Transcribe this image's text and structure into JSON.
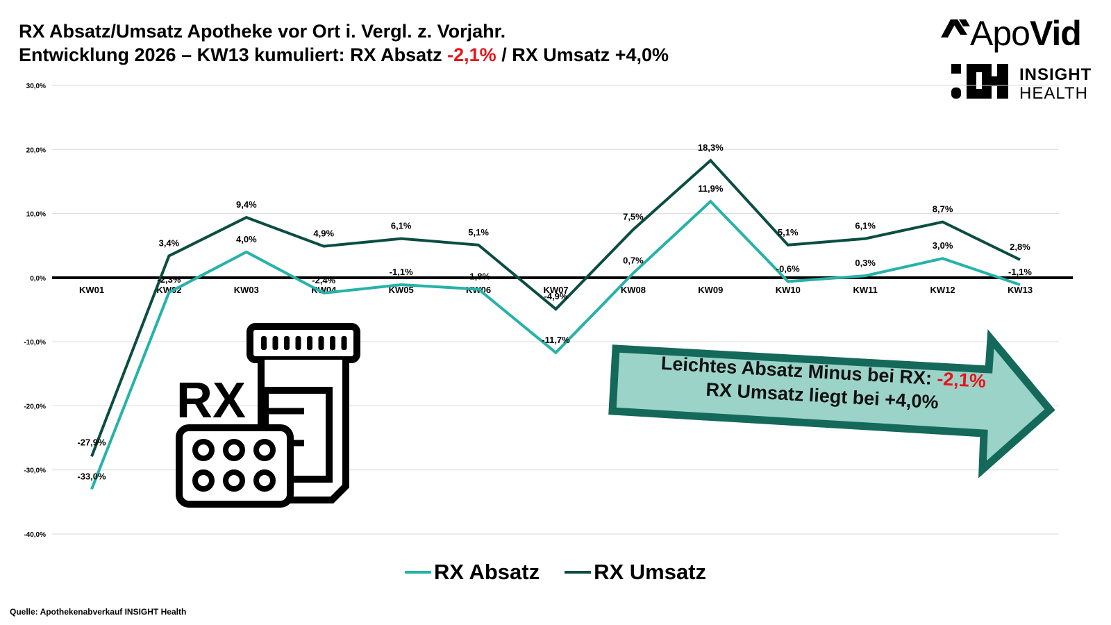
{
  "title": {
    "line1": "RX Absatz/Umsatz Apotheke vor Ort i. Vergl. z. Vorjahr.",
    "line2_prefix": "Entwicklung 2026 – KW13 kumuliert: RX Absatz ",
    "line2_absatz": "-2,1%",
    "line2_suffix": " / RX Umsatz +4,0%"
  },
  "logos": {
    "apovid_light": "Apo",
    "apovid_bold": "Vid",
    "insight_bold": "INSIGHT",
    "insight_light": "HEALTH"
  },
  "callout": {
    "line1_prefix": "Leichtes Absatz Minus bei RX: ",
    "line1_value": "-2,1%",
    "line2": "RX Umsatz liegt bei +4,0%"
  },
  "icon": {
    "name": "rx-pill-bottle-icon",
    "label": "RX"
  },
  "source": "Quelle: Apothekenabverkauf INSIGHT Health",
  "colors": {
    "absatz": "#25b2a9",
    "umsatz": "#0b4d43",
    "callout_fill": "#9bd3c9",
    "callout_border": "#14695a",
    "highlight_negative": "#e8141a"
  },
  "chart_data": {
    "type": "line",
    "categories": [
      "KW01",
      "KW02",
      "KW03",
      "KW04",
      "KW05",
      "KW06",
      "KW07",
      "KW08",
      "KW09",
      "KW10",
      "KW11",
      "KW12",
      "KW13"
    ],
    "ylim": [
      -40,
      30
    ],
    "yticks": [
      30,
      20,
      10,
      0,
      -10,
      -20,
      -30,
      -40
    ],
    "ytick_labels": [
      "30,0%",
      "20,0%",
      "10,0%",
      "0,0%",
      "-10,0%",
      "-20,0%",
      "-30,0%",
      "-40,0%"
    ],
    "grid": true,
    "legend": "bottom-center",
    "series": [
      {
        "name": "RX Absatz",
        "color": "#25b2a9",
        "values": [
          -33.0,
          -2.3,
          4.0,
          -2.4,
          -1.1,
          -1.8,
          -11.7,
          0.7,
          11.9,
          -0.6,
          0.3,
          3.0,
          -1.1
        ],
        "labels": [
          "-33,0%",
          "-2,3%",
          "4,0%",
          "-2,4%",
          "-1,1%",
          "-1,8%",
          "-11,7%",
          "0,7%",
          "11,9%",
          "-0,6%",
          "0,3%",
          "3,0%",
          "-1,1%"
        ]
      },
      {
        "name": "RX Umsatz",
        "color": "#0b4d43",
        "values": [
          -27.9,
          3.4,
          9.4,
          4.9,
          6.1,
          5.1,
          -4.9,
          7.5,
          18.3,
          5.1,
          6.1,
          8.7,
          2.8
        ],
        "labels": [
          "-27,9%",
          "3,4%",
          "9,4%",
          "4,9%",
          "6,1%",
          "5,1%",
          "-4,9%",
          "7,5%",
          "18,3%",
          "5,1%",
          "6,1%",
          "8,7%",
          "2,8%"
        ]
      }
    ]
  }
}
